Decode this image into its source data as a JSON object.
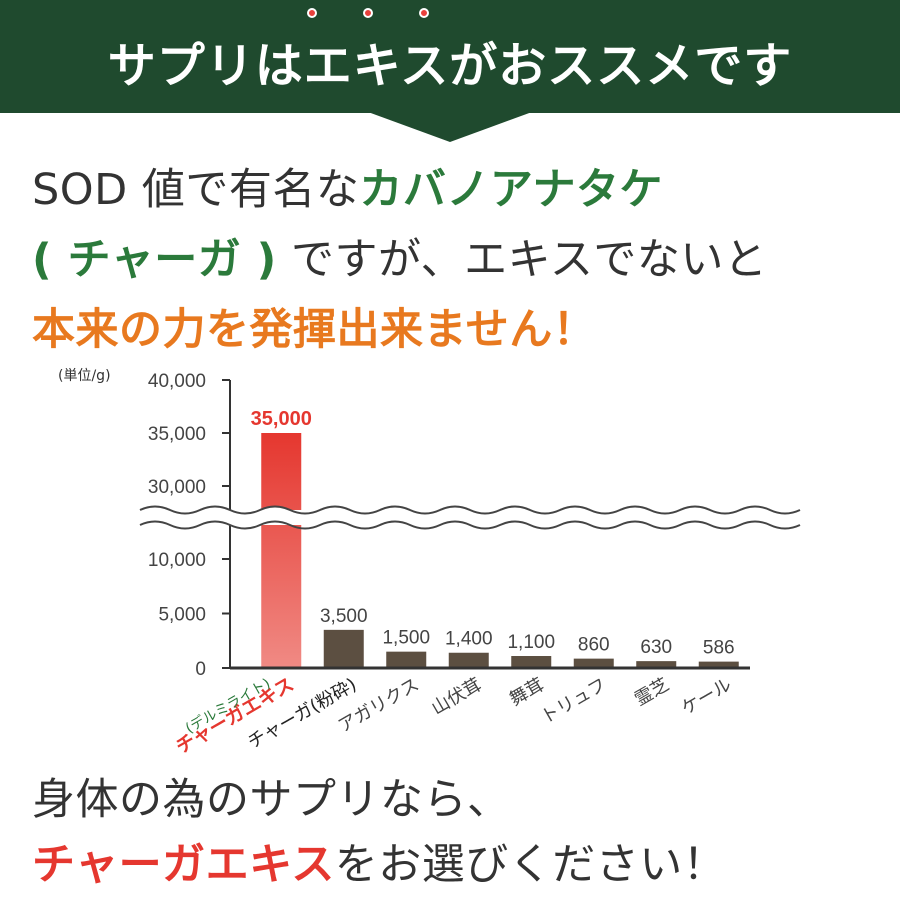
{
  "header": {
    "title": "サプリはエキスがおススメです"
  },
  "intro": {
    "line1_prefix": "SOD 値で有名な",
    "line1_highlight": "カバノアナタケ",
    "line2_highlight": "( チャーガ )",
    "line2_suffix": " ですが、エキスでないと",
    "line3": "本来の力を発揮出来ません！"
  },
  "chart_data": {
    "type": "bar",
    "unit_label": "(単位/g)",
    "categories": [
      "チャーガエキス",
      "チャーガ(粉砕)",
      "アガリクス",
      "山伏茸",
      "舞茸",
      "トリュフ",
      "霊芝",
      "ケール"
    ],
    "category_note": "(デルミライト)",
    "values": [
      35000,
      3500,
      1500,
      1400,
      1100,
      860,
      630,
      586
    ],
    "value_labels": [
      "35,000",
      "3,500",
      "1,500",
      "1,400",
      "1,100",
      "860",
      "630",
      "586"
    ],
    "y_ticks_lower": [
      "0",
      "5,000",
      "10,000"
    ],
    "y_ticks_upper": [
      "30,000",
      "35,000",
      "40,000"
    ],
    "ylim_lower": [
      0,
      13000
    ],
    "ylim_upper": [
      28000,
      40000
    ],
    "axis_break": true,
    "highlight_index": 0,
    "colors": {
      "highlight_top": "#e5372f",
      "highlight_bottom": "#f08a84",
      "bar": "#5c4f41",
      "axis": "#333333",
      "highlight_label": "#e5372f",
      "note": "#2b7a3b"
    }
  },
  "closing": {
    "line1": "身体の為のサプリなら、",
    "line2_highlight": "チャーガエキス",
    "line2_suffix": "をお選びください！"
  }
}
